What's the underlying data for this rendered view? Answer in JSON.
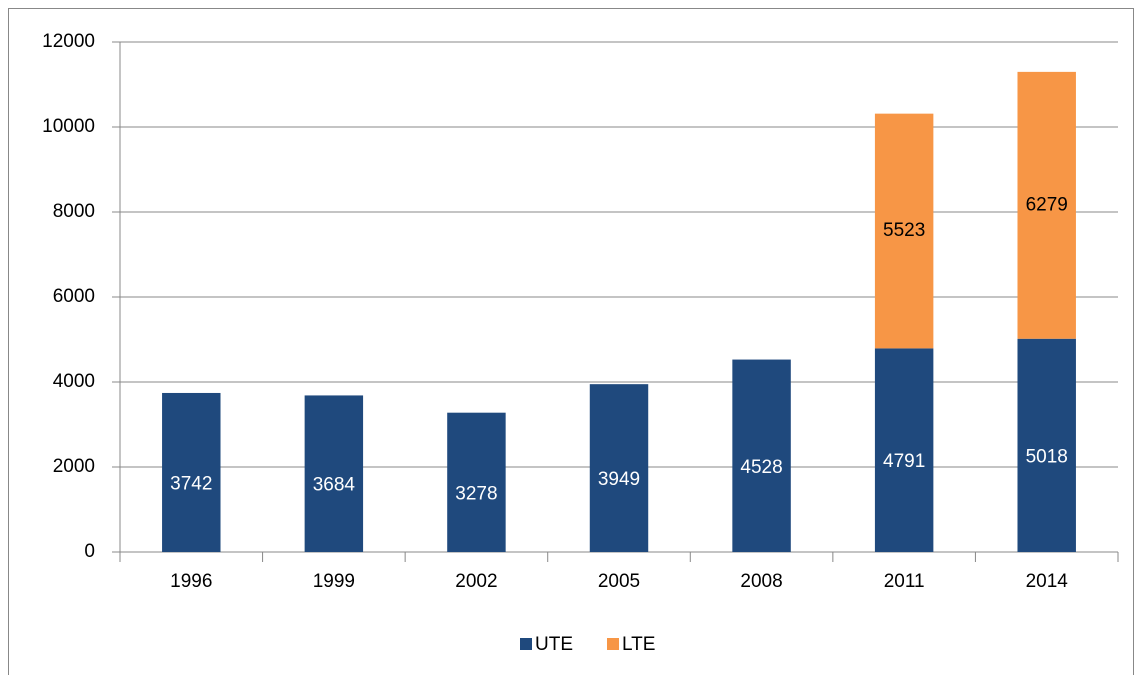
{
  "chart_data": {
    "type": "stacked_bar",
    "categories": [
      "1996",
      "1999",
      "2002",
      "2005",
      "2008",
      "2011",
      "2014"
    ],
    "series": [
      {
        "name": "UTE",
        "color": "#1f497d",
        "values": [
          3742,
          3684,
          3278,
          3949,
          4528,
          4791,
          5018
        ]
      },
      {
        "name": "LTE",
        "color": "#f79646",
        "values": [
          null,
          null,
          null,
          null,
          null,
          5523,
          6279
        ]
      }
    ],
    "ylim": [
      0,
      12000
    ],
    "yticks": [
      0,
      2000,
      4000,
      6000,
      8000,
      10000,
      12000
    ],
    "grid": true,
    "legend": "bottom"
  }
}
